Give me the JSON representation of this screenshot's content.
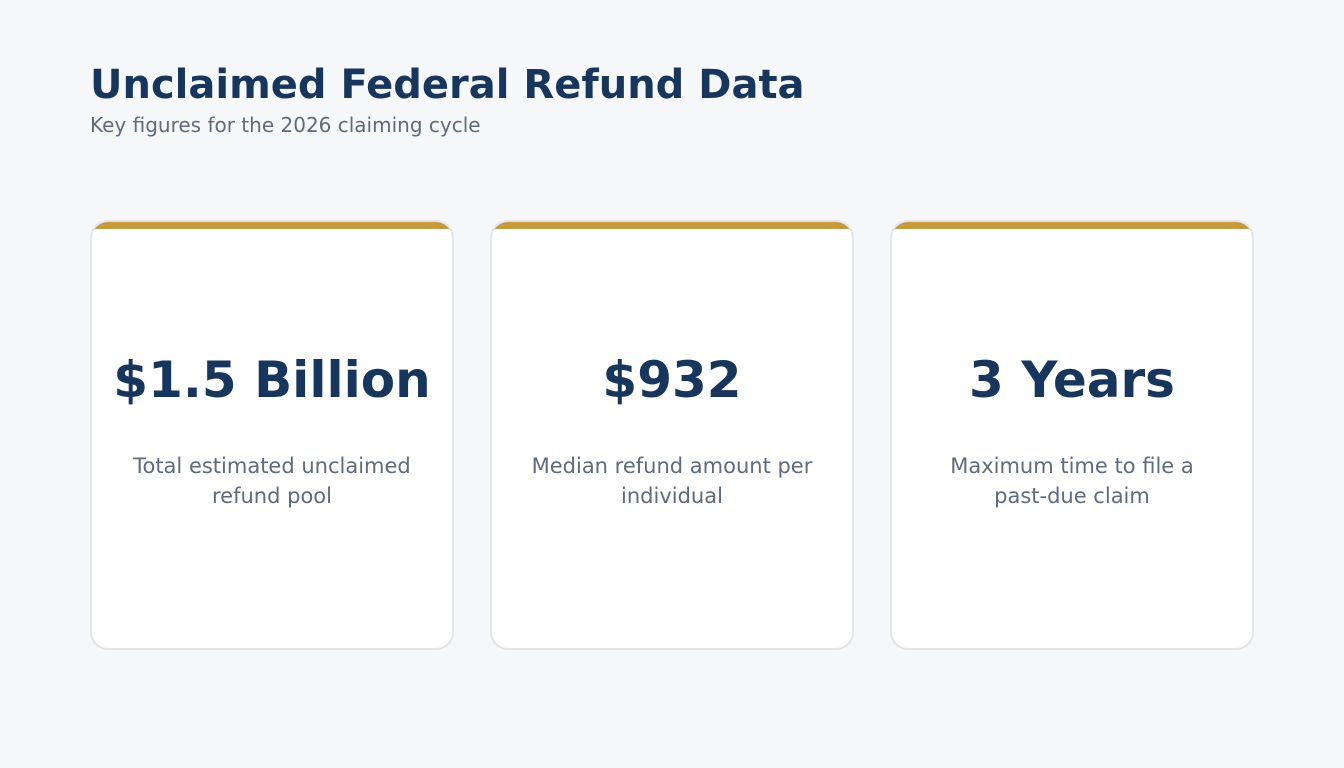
{
  "header": {
    "title": "Unclaimed Federal Refund Data",
    "subtitle": "Key figures for the 2026 claiming cycle"
  },
  "colors": {
    "background": "#f6f7f9",
    "accent": "#c89a3e",
    "value_text": "#17365d",
    "muted_text": "#5f6b7a"
  },
  "cards": [
    {
      "value": "$1.5 Billion",
      "description": "Total estimated unclaimed refund pool"
    },
    {
      "value": "$932",
      "description": "Median refund amount per individual"
    },
    {
      "value": "3 Years",
      "description": "Maximum time to file a past-due claim"
    }
  ]
}
